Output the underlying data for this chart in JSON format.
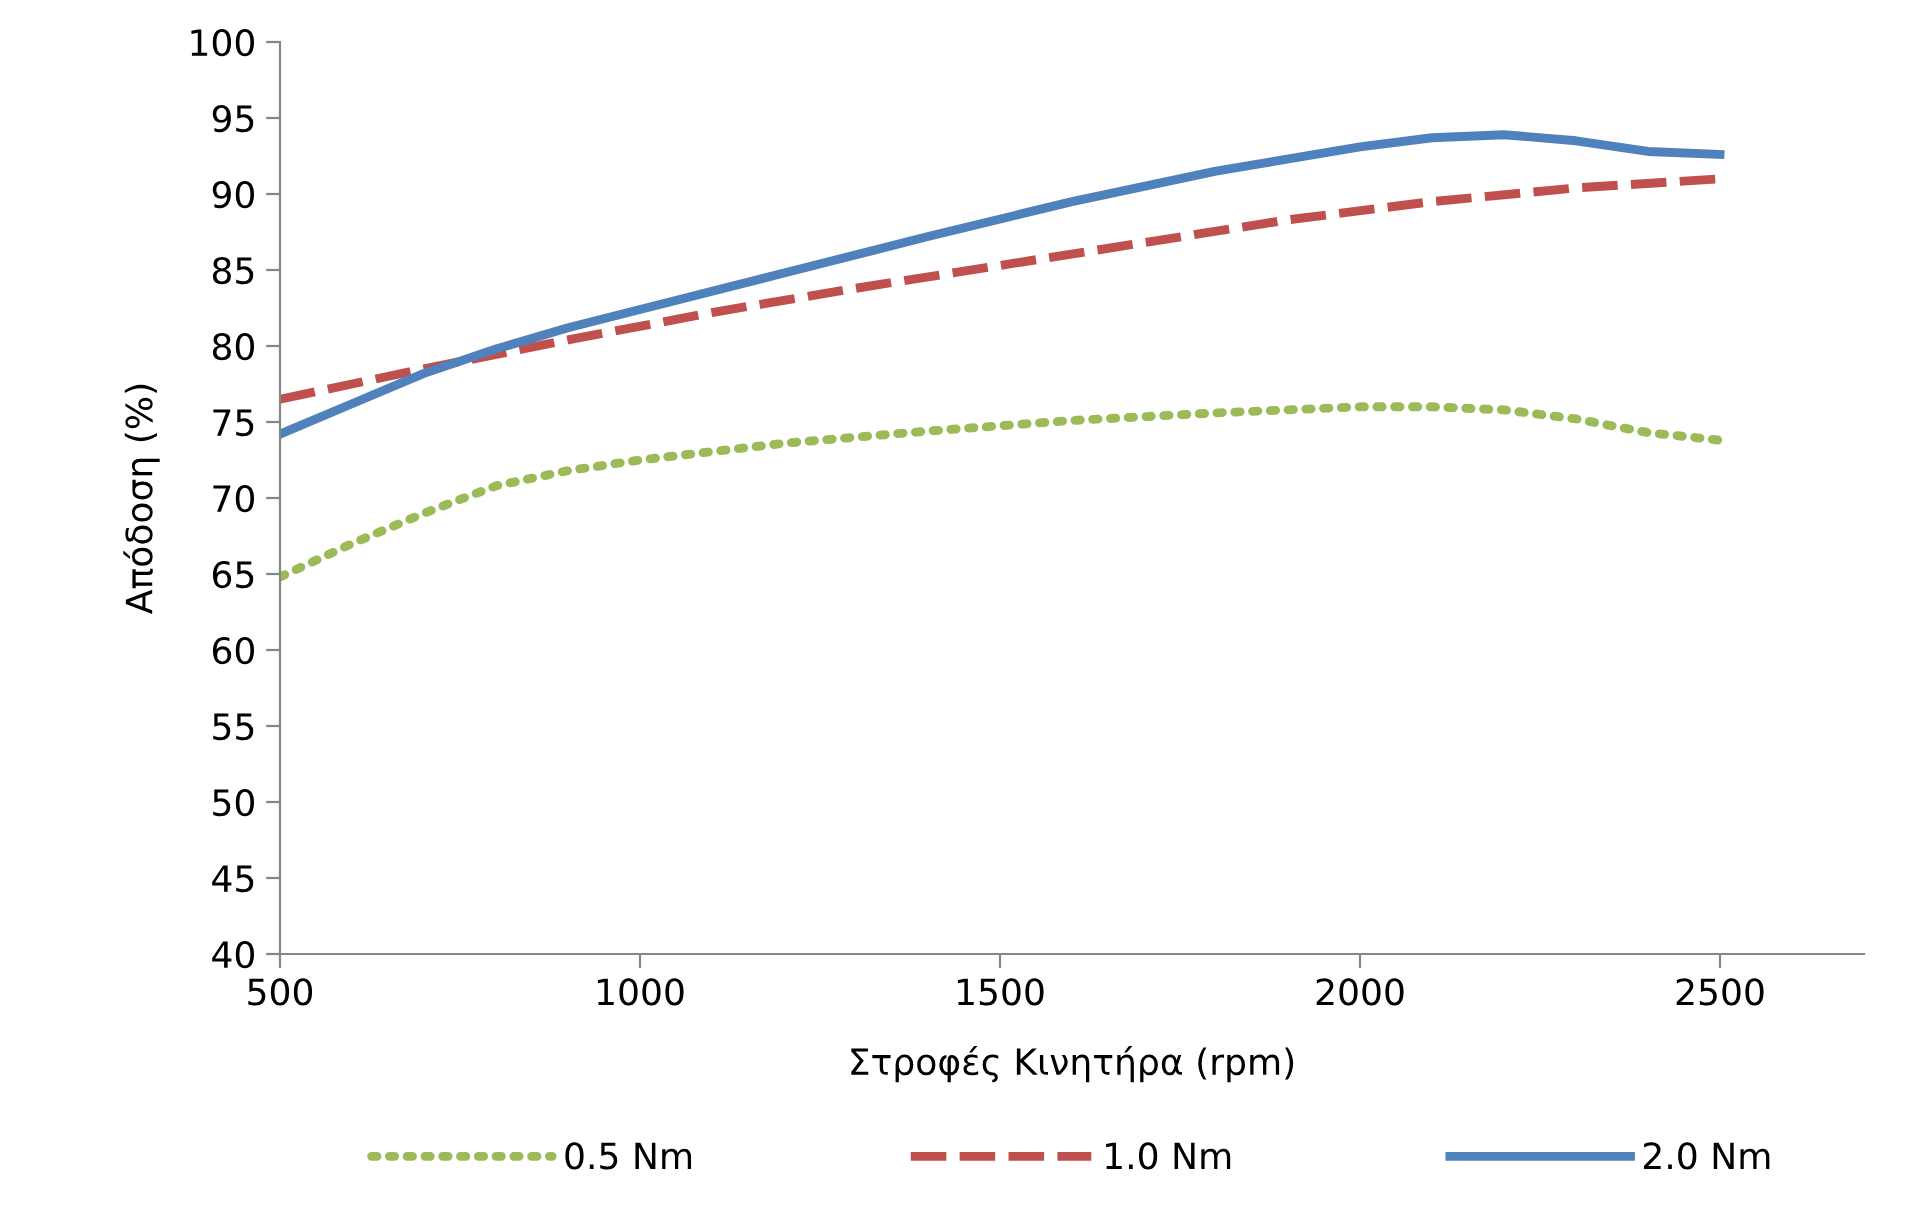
{
  "chart_data": {
    "type": "line",
    "xlabel": "Στροφές Κινητήρα (rpm)",
    "ylabel": "Απόδοση (%)",
    "xlim": [
      500,
      2700
    ],
    "xticks": [
      500,
      1000,
      1500,
      2000,
      2500
    ],
    "ylim": [
      40,
      100
    ],
    "yticks": [
      40,
      45,
      50,
      55,
      60,
      65,
      70,
      75,
      80,
      85,
      90,
      95,
      100
    ],
    "grid": false,
    "legend": "bottom",
    "marker": "none",
    "series": [
      {
        "name": "0.5 Nm",
        "color": "#9bbb59",
        "line_style": "dotted",
        "x": [
          500,
          600,
          700,
          800,
          900,
          1000,
          1200,
          1400,
          1600,
          1800,
          2000,
          2100,
          2200,
          2300,
          2400,
          2500
        ],
        "values": [
          64.8,
          67,
          69,
          70.8,
          71.8,
          72.5,
          73.6,
          74.4,
          75.1,
          75.6,
          76,
          76,
          75.8,
          75.2,
          74.3,
          73.8
        ]
      },
      {
        "name": "1.0 Nm",
        "color": "#c0504d",
        "line_style": "dashed",
        "x": [
          500,
          700,
          900,
          1100,
          1300,
          1500,
          1700,
          1900,
          2100,
          2300,
          2500
        ],
        "values": [
          76.5,
          78.5,
          80.4,
          82.2,
          83.8,
          85.3,
          86.8,
          88.3,
          89.5,
          90.4,
          91
        ]
      },
      {
        "name": "2.0 Nm",
        "color": "#4f81bd",
        "line_style": "solid",
        "x": [
          500,
          600,
          700,
          800,
          900,
          1000,
          1200,
          1400,
          1600,
          1800,
          2000,
          2100,
          2200,
          2300,
          2400,
          2500
        ],
        "values": [
          74.2,
          76.2,
          78.2,
          79.8,
          81.2,
          82.4,
          84.8,
          87.2,
          89.5,
          91.5,
          93.1,
          93.7,
          93.9,
          93.5,
          92.8,
          92.6
        ]
      }
    ]
  }
}
